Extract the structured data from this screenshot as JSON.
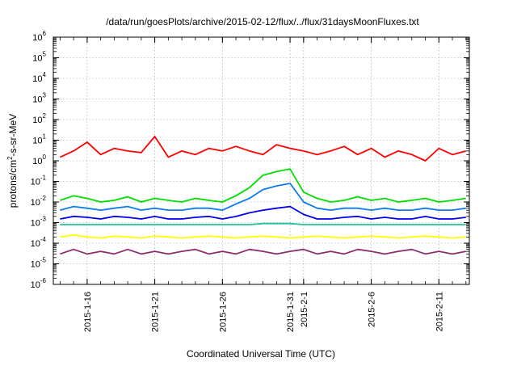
{
  "chart_data": {
    "type": "line",
    "title": "/data/run/goesPlots/archive/2015-02-12/flux/../flux/31daysMoonFluxes.txt",
    "ylabel": {
      "main": "protons/cm",
      "sup": "2",
      "rest": "-s-sr-MeV"
    },
    "xlabel": "Coordinated Universal Time (UTC)",
    "y_scale": "log",
    "ylim": [
      1e-06,
      1000000.0
    ],
    "y_ticks": [
      {
        "base": "10",
        "exp": "-6",
        "value": 1e-06
      },
      {
        "base": "10",
        "exp": "-5",
        "value": 1e-05
      },
      {
        "base": "10",
        "exp": "-4",
        "value": 0.0001
      },
      {
        "base": "10",
        "exp": "-3",
        "value": 0.001
      },
      {
        "base": "10",
        "exp": "-2",
        "value": 0.01
      },
      {
        "base": "10",
        "exp": "-1",
        "value": 0.1
      },
      {
        "base": "10",
        "exp": "0",
        "value": 1
      },
      {
        "base": "10",
        "exp": "1",
        "value": 10
      },
      {
        "base": "10",
        "exp": "2",
        "value": 100
      },
      {
        "base": "10",
        "exp": "3",
        "value": 1000
      },
      {
        "base": "10",
        "exp": "4",
        "value": 10000
      },
      {
        "base": "10",
        "exp": "5",
        "value": 100000
      },
      {
        "base": "10",
        "exp": "6",
        "value": 1000000
      }
    ],
    "xlim": [
      "2015-01-13 12:00",
      "2015-02-13 06:00"
    ],
    "x_ticks": [
      {
        "label": "2015-1-16",
        "date": "2015-01-16"
      },
      {
        "label": "2015-1-21",
        "date": "2015-01-21"
      },
      {
        "label": "2015-1-26",
        "date": "2015-01-26"
      },
      {
        "label": "2015-1-31",
        "date": "2015-01-31"
      },
      {
        "label": "2015-2-1",
        "date": "2015-02-01"
      },
      {
        "label": "2015-2-6",
        "date": "2015-02-06"
      },
      {
        "label": "2015-2-11",
        "date": "2015-02-11"
      }
    ],
    "grid": true,
    "colors": {
      "red": "#ff0000",
      "green": "#00e000",
      "light_blue": "#0a7cf0",
      "blue": "#0000ee",
      "teal": "#20c0a0",
      "yellow": "#ffff00",
      "purple": "#8b2e6b"
    },
    "series": [
      {
        "color": "red",
        "x": [
          "2015-01-14",
          "2015-01-15",
          "2015-01-16",
          "2015-01-17",
          "2015-01-18",
          "2015-01-19",
          "2015-01-20",
          "2015-01-21",
          "2015-01-22",
          "2015-01-23",
          "2015-01-24",
          "2015-01-25",
          "2015-01-26",
          "2015-01-27",
          "2015-01-28",
          "2015-01-29",
          "2015-01-30",
          "2015-01-31",
          "2015-02-01",
          "2015-02-02",
          "2015-02-03",
          "2015-02-04",
          "2015-02-05",
          "2015-02-06",
          "2015-02-07",
          "2015-02-08",
          "2015-02-09",
          "2015-02-10",
          "2015-02-11",
          "2015-02-12",
          "2015-02-13"
        ],
        "y": [
          1.5,
          3,
          8,
          2,
          4,
          3,
          2.5,
          15,
          1.5,
          3,
          2,
          4,
          3,
          5,
          3,
          2,
          6,
          4,
          3,
          2,
          3,
          5,
          2,
          4,
          1.5,
          3,
          2,
          1,
          4,
          2,
          3
        ]
      },
      {
        "color": "green",
        "x": [
          "2015-01-14",
          "2015-01-15",
          "2015-01-16",
          "2015-01-17",
          "2015-01-18",
          "2015-01-19",
          "2015-01-20",
          "2015-01-21",
          "2015-01-22",
          "2015-01-23",
          "2015-01-24",
          "2015-01-25",
          "2015-01-26",
          "2015-01-27",
          "2015-01-28",
          "2015-01-29",
          "2015-01-30",
          "2015-01-31",
          "2015-02-01",
          "2015-02-02",
          "2015-02-03",
          "2015-02-04",
          "2015-02-05",
          "2015-02-06",
          "2015-02-07",
          "2015-02-08",
          "2015-02-09",
          "2015-02-10",
          "2015-02-11",
          "2015-02-12",
          "2015-02-13"
        ],
        "y": [
          0.012,
          0.02,
          0.015,
          0.01,
          0.012,
          0.018,
          0.01,
          0.015,
          0.012,
          0.01,
          0.015,
          0.012,
          0.01,
          0.02,
          0.05,
          0.2,
          0.3,
          0.4,
          0.03,
          0.015,
          0.01,
          0.012,
          0.018,
          0.012,
          0.015,
          0.01,
          0.012,
          0.015,
          0.01,
          0.012,
          0.015
        ]
      },
      {
        "color": "light_blue",
        "x": [
          "2015-01-14",
          "2015-01-15",
          "2015-01-16",
          "2015-01-17",
          "2015-01-18",
          "2015-01-19",
          "2015-01-20",
          "2015-01-21",
          "2015-01-22",
          "2015-01-23",
          "2015-01-24",
          "2015-01-25",
          "2015-01-26",
          "2015-01-27",
          "2015-01-28",
          "2015-01-29",
          "2015-01-30",
          "2015-01-31",
          "2015-02-01",
          "2015-02-02",
          "2015-02-03",
          "2015-02-04",
          "2015-02-05",
          "2015-02-06",
          "2015-02-07",
          "2015-02-08",
          "2015-02-09",
          "2015-02-10",
          "2015-02-11",
          "2015-02-12",
          "2015-02-13"
        ],
        "y": [
          0.004,
          0.006,
          0.005,
          0.004,
          0.005,
          0.006,
          0.004,
          0.005,
          0.004,
          0.004,
          0.005,
          0.005,
          0.004,
          0.008,
          0.015,
          0.04,
          0.06,
          0.08,
          0.01,
          0.005,
          0.004,
          0.005,
          0.005,
          0.004,
          0.005,
          0.004,
          0.004,
          0.005,
          0.004,
          0.004,
          0.005
        ]
      },
      {
        "color": "blue",
        "x": [
          "2015-01-14",
          "2015-01-15",
          "2015-01-16",
          "2015-01-17",
          "2015-01-18",
          "2015-01-19",
          "2015-01-20",
          "2015-01-21",
          "2015-01-22",
          "2015-01-23",
          "2015-01-24",
          "2015-01-25",
          "2015-01-26",
          "2015-01-27",
          "2015-01-28",
          "2015-01-29",
          "2015-01-30",
          "2015-01-31",
          "2015-02-01",
          "2015-02-02",
          "2015-02-03",
          "2015-02-04",
          "2015-02-05",
          "2015-02-06",
          "2015-02-07",
          "2015-02-08",
          "2015-02-09",
          "2015-02-10",
          "2015-02-11",
          "2015-02-12",
          "2015-02-13"
        ],
        "y": [
          0.0015,
          0.002,
          0.0018,
          0.0015,
          0.002,
          0.0018,
          0.0015,
          0.002,
          0.0015,
          0.0015,
          0.0018,
          0.002,
          0.0015,
          0.002,
          0.003,
          0.004,
          0.005,
          0.006,
          0.0025,
          0.0015,
          0.0015,
          0.0018,
          0.002,
          0.0015,
          0.0018,
          0.0015,
          0.0015,
          0.002,
          0.0015,
          0.0015,
          0.0018
        ]
      },
      {
        "color": "teal",
        "x": [
          "2015-01-14",
          "2015-01-15",
          "2015-01-16",
          "2015-01-17",
          "2015-01-18",
          "2015-01-19",
          "2015-01-20",
          "2015-01-21",
          "2015-01-22",
          "2015-01-23",
          "2015-01-24",
          "2015-01-25",
          "2015-01-26",
          "2015-01-27",
          "2015-01-28",
          "2015-01-29",
          "2015-01-30",
          "2015-01-31",
          "2015-02-01",
          "2015-02-02",
          "2015-02-03",
          "2015-02-04",
          "2015-02-05",
          "2015-02-06",
          "2015-02-07",
          "2015-02-08",
          "2015-02-09",
          "2015-02-10",
          "2015-02-11",
          "2015-02-12",
          "2015-02-13"
        ],
        "y": [
          0.0008,
          0.0008,
          0.0008,
          0.0008,
          0.0008,
          0.0008,
          0.0008,
          0.0008,
          0.0008,
          0.0008,
          0.0008,
          0.0008,
          0.0008,
          0.0008,
          0.0008,
          0.0009,
          0.0009,
          0.0009,
          0.0008,
          0.0008,
          0.0008,
          0.0008,
          0.0008,
          0.0008,
          0.0008,
          0.0008,
          0.0008,
          0.0008,
          0.0008,
          0.0008,
          0.0008
        ]
      },
      {
        "color": "yellow",
        "x": [
          "2015-01-14",
          "2015-01-15",
          "2015-01-16",
          "2015-01-17",
          "2015-01-18",
          "2015-01-19",
          "2015-01-20",
          "2015-01-21",
          "2015-01-22",
          "2015-01-23",
          "2015-01-24",
          "2015-01-25",
          "2015-01-26",
          "2015-01-27",
          "2015-01-28",
          "2015-01-29",
          "2015-01-30",
          "2015-01-31",
          "2015-02-01",
          "2015-02-02",
          "2015-02-03",
          "2015-02-04",
          "2015-02-05",
          "2015-02-06",
          "2015-02-07",
          "2015-02-08",
          "2015-02-09",
          "2015-02-10",
          "2015-02-11",
          "2015-02-12",
          "2015-02-13"
        ],
        "y": [
          0.0002,
          0.00025,
          0.0002,
          0.00018,
          0.00022,
          0.0002,
          0.00018,
          0.00022,
          0.0002,
          0.00018,
          0.0002,
          0.00022,
          0.0002,
          0.00018,
          0.0002,
          0.00022,
          0.0002,
          0.00018,
          0.0002,
          0.00022,
          0.0002,
          0.00018,
          0.0002,
          0.00022,
          0.0002,
          0.00018,
          0.0002,
          0.00022,
          0.0002,
          0.00018,
          0.0002
        ]
      },
      {
        "color": "purple",
        "x": [
          "2015-01-14",
          "2015-01-15",
          "2015-01-16",
          "2015-01-17",
          "2015-01-18",
          "2015-01-19",
          "2015-01-20",
          "2015-01-21",
          "2015-01-22",
          "2015-01-23",
          "2015-01-24",
          "2015-01-25",
          "2015-01-26",
          "2015-01-27",
          "2015-01-28",
          "2015-01-29",
          "2015-01-30",
          "2015-01-31",
          "2015-02-01",
          "2015-02-02",
          "2015-02-03",
          "2015-02-04",
          "2015-02-05",
          "2015-02-06",
          "2015-02-07",
          "2015-02-08",
          "2015-02-09",
          "2015-02-10",
          "2015-02-11",
          "2015-02-12",
          "2015-02-13"
        ],
        "y": [
          3e-05,
          5e-05,
          3e-05,
          4e-05,
          3e-05,
          5e-05,
          3e-05,
          4e-05,
          3e-05,
          4e-05,
          5e-05,
          3e-05,
          4e-05,
          3e-05,
          5e-05,
          4e-05,
          3e-05,
          4e-05,
          5e-05,
          3e-05,
          4e-05,
          3e-05,
          5e-05,
          4e-05,
          3e-05,
          4e-05,
          5e-05,
          3e-05,
          4e-05,
          3e-05,
          4e-05
        ]
      }
    ]
  }
}
